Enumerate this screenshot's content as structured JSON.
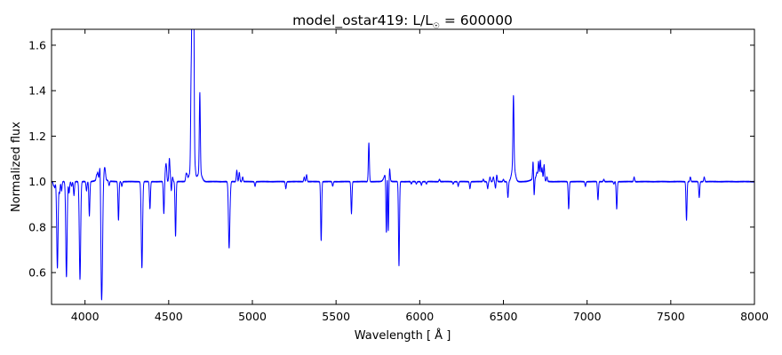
{
  "chart_data": {
    "type": "line",
    "title": "model_ostar419: L/L",
    "title_subscript": "☉",
    "title_suffix": " = 600000",
    "xlabel": "Wavelength [ Å ]",
    "ylabel": "Normalized flux",
    "xlim": [
      3800,
      8000
    ],
    "ylim": [
      0.46,
      1.67
    ],
    "xticks": [
      4000,
      4500,
      5000,
      5500,
      6000,
      6500,
      7000,
      7500,
      8000
    ],
    "yticks": [
      0.6,
      0.8,
      1.0,
      1.2,
      1.4,
      1.6
    ],
    "xtick_labels": [
      "4000",
      "4500",
      "5000",
      "5500",
      "6000",
      "6500",
      "7000",
      "7500",
      "8000"
    ],
    "ytick_labels": [
      "0.6",
      "0.8",
      "1.0",
      "1.2",
      "1.4",
      "1.6"
    ],
    "grid": false,
    "line_color": "#0000ff",
    "continuum": 1.0,
    "series": [
      {
        "lines": [
          [
            3812,
            0.985,
            3
          ],
          [
            3819,
            0.975,
            3
          ],
          [
            3835,
            0.62,
            4
          ],
          [
            3848,
            0.95,
            3
          ],
          [
            3860,
            0.96,
            3
          ],
          [
            3889,
            0.58,
            4
          ],
          [
            3905,
            0.95,
            3
          ],
          [
            3920,
            0.98,
            3
          ],
          [
            3934,
            0.94,
            3
          ],
          [
            3970,
            0.57,
            4
          ],
          [
            4009,
            0.96,
            3
          ],
          [
            4026,
            0.85,
            3
          ],
          [
            4069,
            1.02,
            3
          ],
          [
            4076,
            1.03,
            3
          ],
          [
            4089,
            1.05,
            3
          ],
          [
            4097,
            0.72,
            3
          ],
          [
            4102,
            0.59,
            4
          ],
          [
            4116,
            1.04,
            3
          ],
          [
            4121,
            1.03,
            3
          ],
          [
            4144,
            0.98,
            3
          ],
          [
            4200,
            0.83,
            3
          ],
          [
            4220,
            0.98,
            3
          ],
          [
            4340,
            0.62,
            4
          ],
          [
            4388,
            0.88,
            3
          ],
          [
            4471,
            0.86,
            3
          ],
          [
            4481,
            1.05,
            3
          ],
          [
            4486,
            1.06,
            3
          ],
          [
            4504,
            1.1,
            3
          ],
          [
            4511,
            1.03,
            3
          ],
          [
            4515,
            0.95,
            3
          ],
          [
            4523,
            1.02,
            3
          ],
          [
            4541,
            0.76,
            3
          ],
          [
            4604,
            1.03,
            3
          ],
          [
            4610,
            1.02,
            3
          ],
          [
            4634,
            1.36,
            3
          ],
          [
            4640,
            1.57,
            3
          ],
          [
            4641,
            1.52,
            2
          ],
          [
            4647,
            1.56,
            3
          ],
          [
            4650,
            1.48,
            3
          ],
          [
            4658,
            1.03,
            3
          ],
          [
            4686,
            1.35,
            3
          ],
          [
            4861,
            0.71,
            4
          ],
          [
            4868,
            0.97,
            3
          ],
          [
            4907,
            1.05,
            3
          ],
          [
            4922,
            1.04,
            3
          ],
          [
            4942,
            1.02,
            3
          ],
          [
            5016,
            0.98,
            3
          ],
          [
            5200,
            0.97,
            3
          ],
          [
            5310,
            1.02,
            3
          ],
          [
            5324,
            1.03,
            3
          ],
          [
            5411,
            0.74,
            3
          ],
          [
            5480,
            0.98,
            3
          ],
          [
            5592,
            0.86,
            3
          ],
          [
            5696,
            1.17,
            3
          ],
          [
            5801,
            0.72,
            3
          ],
          [
            5806,
            1.07,
            3
          ],
          [
            5812,
            0.75,
            3
          ],
          [
            5820,
            1.05,
            3
          ],
          [
            5876,
            0.63,
            3
          ],
          [
            5950,
            0.99,
            3
          ],
          [
            5980,
            0.99,
            3
          ],
          [
            6010,
            0.985,
            3
          ],
          [
            6040,
            0.99,
            3
          ],
          [
            6118,
            1.01,
            3
          ],
          [
            6200,
            0.99,
            3
          ],
          [
            6230,
            0.98,
            3
          ],
          [
            6300,
            0.97,
            3
          ],
          [
            6380,
            1.01,
            3
          ],
          [
            6406,
            0.97,
            3
          ],
          [
            6420,
            1.02,
            3
          ],
          [
            6440,
            1.02,
            3
          ],
          [
            6453,
            0.97,
            3
          ],
          [
            6460,
            1.03,
            3
          ],
          [
            6500,
            1.01,
            3
          ],
          [
            6527,
            0.93,
            3
          ],
          [
            6560,
            1.25,
            3
          ],
          [
            6678,
            1.09,
            3
          ],
          [
            6683,
            0.91,
            3
          ],
          [
            6700,
            1.02,
            3
          ],
          [
            6710,
            1.07,
            3
          ],
          [
            6721,
            1.08,
            3
          ],
          [
            6731,
            1.05,
            3
          ],
          [
            6743,
            1.07,
            3
          ],
          [
            6760,
            1.02,
            3
          ],
          [
            6890,
            0.88,
            3
          ],
          [
            6990,
            0.98,
            3
          ],
          [
            7065,
            0.92,
            3
          ],
          [
            7100,
            1.01,
            3
          ],
          [
            7160,
            0.99,
            3
          ],
          [
            7177,
            0.88,
            3
          ],
          [
            7281,
            1.02,
            3
          ],
          [
            7594,
            0.83,
            3
          ],
          [
            7617,
            1.02,
            3
          ],
          [
            7640,
            1.0,
            3
          ],
          [
            7670,
            0.93,
            3
          ],
          [
            7700,
            1.02,
            3
          ]
        ],
        "bumps": [
          [
            4100,
            0.015,
            25
          ],
          [
            4640,
            0.06,
            15
          ],
          [
            4686,
            0.04,
            12
          ],
          [
            5801,
            0.04,
            12
          ],
          [
            6560,
            0.07,
            10
          ],
          [
            6560,
            0.06,
            3
          ],
          [
            6700,
            0.02,
            25
          ]
        ]
      }
    ]
  }
}
